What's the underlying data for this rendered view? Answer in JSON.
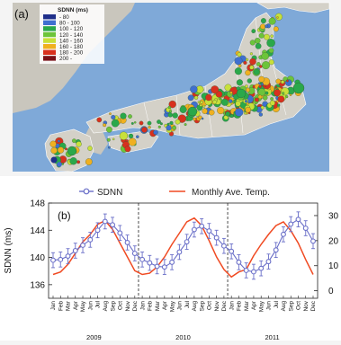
{
  "panel_a": {
    "label": "(a)",
    "legend_title": "SDNN (ms)",
    "legend_items": [
      {
        "label": "- 80",
        "color": "#1f2f8a"
      },
      {
        "label": "80 - 100",
        "color": "#3f6fd0"
      },
      {
        "label": "100 - 120",
        "color": "#2aa84a"
      },
      {
        "label": "120 - 140",
        "color": "#6cc43a"
      },
      {
        "label": "140 - 160",
        "color": "#c8e03a"
      },
      {
        "label": "160 - 180",
        "color": "#f0b020"
      },
      {
        "label": "180 - 200",
        "color": "#d8301e"
      },
      {
        "label": "200 -",
        "color": "#7a1018"
      }
    ],
    "colors": {
      "sea": "#7fa9d8",
      "land": "#c9c6bd",
      "border": "#ffffff"
    }
  },
  "chart_data": {
    "type": "line",
    "panel_label": "(b)",
    "ylabel": "SDNN (ms)",
    "ylim": [
      134,
      148
    ],
    "yticks": [
      136,
      140,
      144,
      148
    ],
    "y2lim": [
      -3,
      35
    ],
    "y2ticks": [
      0,
      10,
      20,
      30
    ],
    "legend": [
      {
        "name": "SDNN",
        "marker": "circle",
        "color": "#6a6fc8"
      },
      {
        "name": "Monthly Ave. Temp.",
        "color": "#f04a22"
      }
    ],
    "legend_position": "top",
    "months": [
      "Jan",
      "Feb",
      "Mar",
      "Apr",
      "May",
      "Jun",
      "Jul",
      "Aug",
      "Sep",
      "Oct",
      "Nov",
      "Dec"
    ],
    "years": [
      "2009",
      "2010",
      "2011"
    ],
    "series": [
      {
        "name": "SDNN",
        "axis": "left",
        "values": [
          139.6,
          139.7,
          140.2,
          141.0,
          141.8,
          142.6,
          144.0,
          145.3,
          144.8,
          143.6,
          142.2,
          140.6,
          139.7,
          139.2,
          138.7,
          138.6,
          139.3,
          140.8,
          142.3,
          144.1,
          144.6,
          143.9,
          142.9,
          141.7,
          140.9,
          139.3,
          138.1,
          137.9,
          138.4,
          139.4,
          141.1,
          143.4,
          144.9,
          145.6,
          144.3,
          142.4
        ],
        "error": 1.1
      },
      {
        "name": "Monthly Ave. Temp.",
        "axis": "right",
        "values": [
          6.5,
          7.5,
          10.5,
          15.0,
          19.5,
          22.5,
          26.5,
          28.0,
          24.5,
          19.0,
          13.5,
          8.0,
          6.5,
          7.0,
          9.5,
          13.5,
          18.5,
          23.0,
          27.5,
          29.0,
          26.0,
          20.0,
          13.5,
          8.5,
          5.5,
          7.5,
          8.5,
          14.0,
          18.5,
          22.5,
          26.0,
          27.5,
          24.0,
          19.0,
          12.5,
          6.5
        ]
      }
    ],
    "separators_after_month": [
      12,
      24
    ],
    "grid": false
  }
}
